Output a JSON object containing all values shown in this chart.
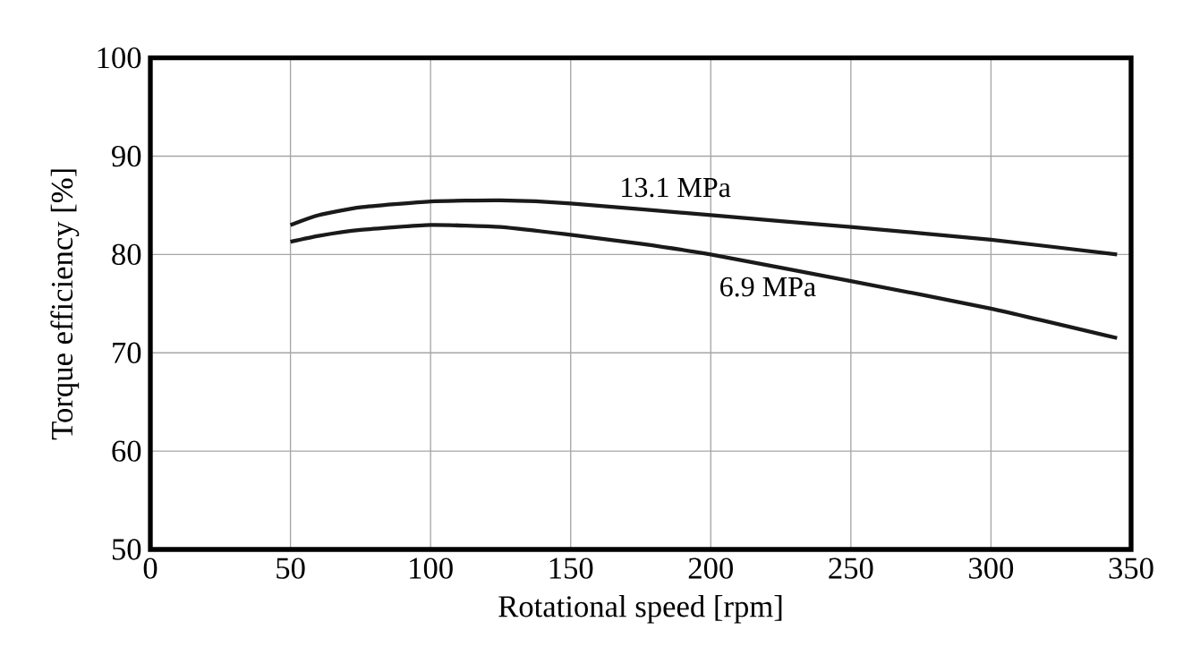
{
  "chart_data": {
    "type": "line",
    "xlabel": "Rotational speed [rpm]",
    "ylabel": "Torque efficiency [%]",
    "xlim": [
      0,
      350
    ],
    "xticks": [
      0,
      50,
      100,
      150,
      200,
      250,
      300,
      350
    ],
    "ylim": [
      50,
      100
    ],
    "yticks": [
      50,
      60,
      70,
      80,
      90,
      100
    ],
    "grid": true,
    "marker": "none",
    "line_style": "solid",
    "series": [
      {
        "name": "13.1 MPa",
        "color": "#1a1a1a",
        "x": [
          50,
          60,
          75,
          100,
          125,
          150,
          200,
          250,
          300,
          345
        ],
        "values": [
          83,
          84,
          84.8,
          85.4,
          85.5,
          85.2,
          84,
          82.8,
          81.5,
          80
        ]
      },
      {
        "name": "6.9 MPa",
        "color": "#1a1a1a",
        "x": [
          50,
          60,
          75,
          100,
          125,
          150,
          175,
          200,
          250,
          300,
          345
        ],
        "values": [
          81.3,
          81.9,
          82.5,
          83,
          82.8,
          82,
          81.1,
          80,
          77.3,
          74.5,
          71.5
        ]
      }
    ]
  }
}
